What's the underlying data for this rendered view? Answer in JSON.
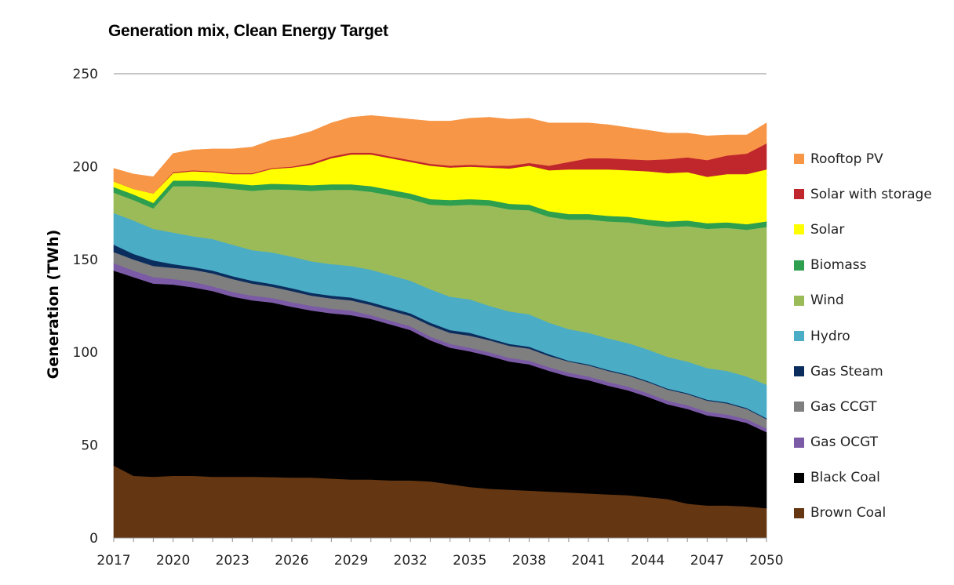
{
  "chart_data": {
    "type": "area",
    "title": "Generation mix, Clean Energy Target",
    "ylabel": "Generation (TWh)",
    "xlabel": "",
    "ylim": [
      0,
      250
    ],
    "yticks": [
      0,
      50,
      100,
      150,
      200,
      250
    ],
    "xticks": [
      "2017",
      "2020",
      "2023",
      "2026",
      "2029",
      "2032",
      "2035",
      "2038",
      "2041",
      "2044",
      "2047",
      "2050"
    ],
    "stacked": true,
    "grid": "top line only",
    "legend_position": "right",
    "x": [
      2017,
      2018,
      2019,
      2020,
      2021,
      2022,
      2023,
      2024,
      2025,
      2026,
      2027,
      2028,
      2029,
      2030,
      2031,
      2032,
      2033,
      2034,
      2035,
      2036,
      2037,
      2038,
      2039,
      2040,
      2041,
      2042,
      2043,
      2044,
      2045,
      2046,
      2047,
      2048,
      2049,
      2050
    ],
    "series": [
      {
        "name": "Brown Coal",
        "color": "#643612",
        "values": [
          39,
          33.5,
          33,
          33.5,
          33.5,
          33,
          33,
          33,
          32.8,
          32.5,
          32.5,
          32,
          31.5,
          31.5,
          31,
          31,
          30.5,
          29,
          27.5,
          26.5,
          26,
          25.5,
          25,
          24.5,
          24,
          23.5,
          23,
          22,
          21,
          18.5,
          17.5,
          17.5,
          17,
          16
        ]
      },
      {
        "name": "Black Coal",
        "color": "#000000",
        "values": [
          105,
          107,
          104,
          103,
          101.5,
          100,
          97,
          95,
          94,
          92,
          90,
          89,
          88.5,
          86.5,
          84,
          81,
          76,
          73.5,
          73,
          71.5,
          69,
          68,
          65,
          62.5,
          61,
          58.5,
          56.5,
          54,
          51,
          51,
          48.5,
          47,
          45,
          41
        ]
      },
      {
        "name": "Gas OCGT",
        "color": "#7b5aa6",
        "values": [
          4,
          3.5,
          3.5,
          3,
          3,
          2.5,
          2.5,
          2.5,
          2.5,
          2.5,
          2.5,
          2.5,
          2.5,
          2,
          2,
          2,
          2,
          2,
          2,
          2,
          2,
          2,
          2,
          2,
          2,
          2,
          2,
          2,
          2,
          2,
          2,
          2,
          2,
          2
        ]
      },
      {
        "name": "Gas CCGT",
        "color": "#7f7f7f",
        "values": [
          6,
          6,
          6,
          6,
          6.5,
          7,
          7,
          6.5,
          6,
          6,
          5.5,
          5.5,
          5.5,
          5.5,
          5.5,
          5.5,
          6,
          6,
          6.5,
          6.5,
          6.5,
          6.5,
          6,
          6,
          6,
          6,
          6,
          6,
          6,
          6,
          6,
          6,
          5.5,
          5
        ]
      },
      {
        "name": "Gas Steam",
        "color": "#0b2d5e",
        "values": [
          4,
          3,
          3,
          2,
          1.5,
          1.5,
          1.5,
          1.5,
          1.5,
          1.5,
          1.5,
          1.5,
          1.5,
          1.5,
          1.5,
          1.5,
          1.5,
          1.5,
          1.5,
          1,
          1,
          1,
          1,
          0.5,
          0.5,
          0.5,
          0.5,
          0.5,
          0.5,
          0.5,
          0.5,
          0.5,
          0.5,
          0.5
        ]
      },
      {
        "name": "Hydro",
        "color": "#4bacc6",
        "values": [
          17,
          18,
          17,
          17,
          16.5,
          17,
          17,
          16.5,
          17,
          17,
          17,
          17,
          17,
          17.5,
          17.5,
          17.5,
          18,
          18,
          18,
          17.5,
          17.5,
          17.5,
          17,
          17,
          17,
          17,
          17,
          17,
          17,
          17,
          17,
          17,
          17,
          18
        ]
      },
      {
        "name": "Wind",
        "color": "#9bbb59",
        "values": [
          11,
          11,
          11,
          25,
          27,
          28,
          30,
          32,
          34,
          36,
          38,
          40,
          41,
          42,
          43,
          44,
          45.5,
          49,
          51,
          54,
          55,
          56,
          57,
          59,
          61,
          63,
          65,
          67,
          70,
          73,
          75,
          77,
          79,
          85
        ]
      },
      {
        "name": "Biomass",
        "color": "#2e9e4f",
        "values": [
          3,
          3,
          3,
          3,
          3,
          3,
          3,
          3,
          3,
          3,
          3,
          3,
          3,
          3,
          3,
          3,
          3,
          3,
          3,
          3,
          3,
          3,
          3,
          3,
          3,
          3,
          3,
          3,
          3,
          3,
          3,
          3,
          3,
          3
        ]
      },
      {
        "name": "Solar",
        "color": "#ffff00",
        "values": [
          3,
          3,
          5,
          4,
          5,
          5,
          5,
          6,
          8,
          9,
          11,
          14,
          16,
          17,
          17,
          17,
          18,
          17.5,
          17.5,
          17.5,
          19,
          21,
          22,
          24,
          24,
          25,
          25,
          26,
          26,
          26,
          25,
          26,
          27,
          28
        ]
      },
      {
        "name": "Solar with storage",
        "color": "#c0272d",
        "values": [
          0,
          0,
          0,
          0.5,
          0.5,
          0.5,
          0.5,
          0.5,
          0.5,
          0.5,
          1,
          1,
          1,
          1,
          1,
          1,
          1,
          1,
          1,
          1,
          1.5,
          1.5,
          2.5,
          4,
          6,
          6,
          6,
          6,
          7.5,
          8,
          9,
          10,
          11,
          14
        ]
      },
      {
        "name": "Rooftop PV",
        "color": "#f79646",
        "values": [
          7,
          8,
          9,
          10,
          11,
          12,
          13,
          14,
          15,
          16,
          17,
          18,
          19,
          20,
          21,
          22,
          23,
          24,
          25,
          26,
          25,
          24,
          23,
          21,
          19,
          18,
          17,
          16,
          14,
          13,
          13,
          11,
          10,
          11
        ]
      }
    ]
  }
}
